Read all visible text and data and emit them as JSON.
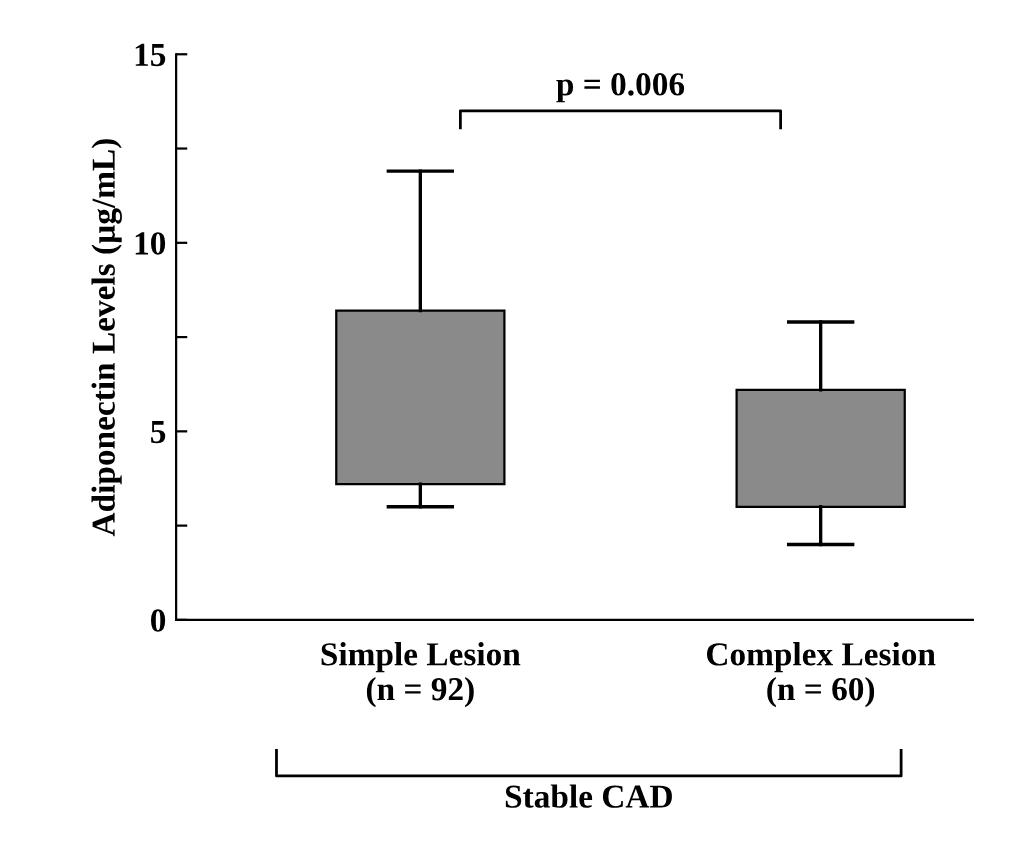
{
  "chart_data": {
    "type": "box",
    "ylabel": "Adiponectin Levels (µg/mL)",
    "categories": [
      "Simple Lesion\n(n = 92)",
      "Complex Lesion\n(n = 60)"
    ],
    "boxes": [
      {
        "low": 3.0,
        "q1": 3.6,
        "q3": 8.2,
        "high": 11.9
      },
      {
        "low": 2.0,
        "q1": 3.0,
        "q3": 6.1,
        "high": 7.9
      }
    ],
    "color": "#8a8a8a",
    "ylim": [
      0,
      15
    ],
    "yticks": [
      0,
      {
        "value": 2.5,
        "label": null
      },
      5,
      {
        "value": 7.5,
        "label": null
      },
      10,
      {
        "value": 12.5,
        "label": null
      },
      15
    ],
    "annotations": [
      "p = 0.006",
      "Stable CAD"
    ],
    "grid": false,
    "legend": false
  }
}
